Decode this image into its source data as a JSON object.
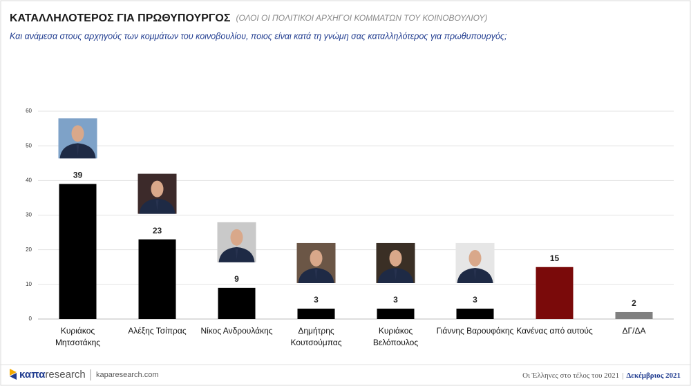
{
  "chart_data": {
    "type": "bar",
    "title": "ΚΑΤΑΛΛΗΛΟΤΕΡΟΣ ΓΙΑ ΠΡΩΘΥΠΟΥΡΓΟΣ",
    "subtitle": "(ΟΛΟΙ ΟΙ ΠΟΛΙΤΙΚΟΙ ΑΡΧΗΓΟΙ ΚΟΜΜΑΤΩΝ ΤΟΥ ΚΟΙΝΟΒΟΥΛΙΟΥ)",
    "question": "Και ανάμεσα στους αρχηγούς των κομμάτων του κοινοβουλίου, ποιος είναι κατά τη γνώμη σας καταλληλότερος για πρωθυπουργός;",
    "categories": [
      "Κυριάκος Μητσοτάκης",
      "Αλέξης Τσίπρας",
      "Νίκος Ανδρουλάκης",
      "Δημήτρης Κουτσούμπας",
      "Κυριάκος Βελόπουλος",
      "Γιάννης Βαρουφάκης",
      "Κανένας από αυτούς",
      "ΔΓ/ΔΑ"
    ],
    "values": [
      39,
      23,
      9,
      3,
      3,
      3,
      15,
      2
    ],
    "colors": [
      "#000000",
      "#000000",
      "#000000",
      "#000000",
      "#000000",
      "#000000",
      "#7a0a0a",
      "#808080"
    ],
    "ylim": [
      0,
      60
    ],
    "yticks": [
      0,
      10,
      20,
      30,
      40,
      50,
      60
    ],
    "grid": true
  },
  "footer": {
    "brand_a": "καπα",
    "brand_b": "research",
    "site": "kaparesearch.com",
    "survey": "Οι Έλληνες στο τέλος του 2021",
    "date": "Δεκέμβριος 2021"
  }
}
